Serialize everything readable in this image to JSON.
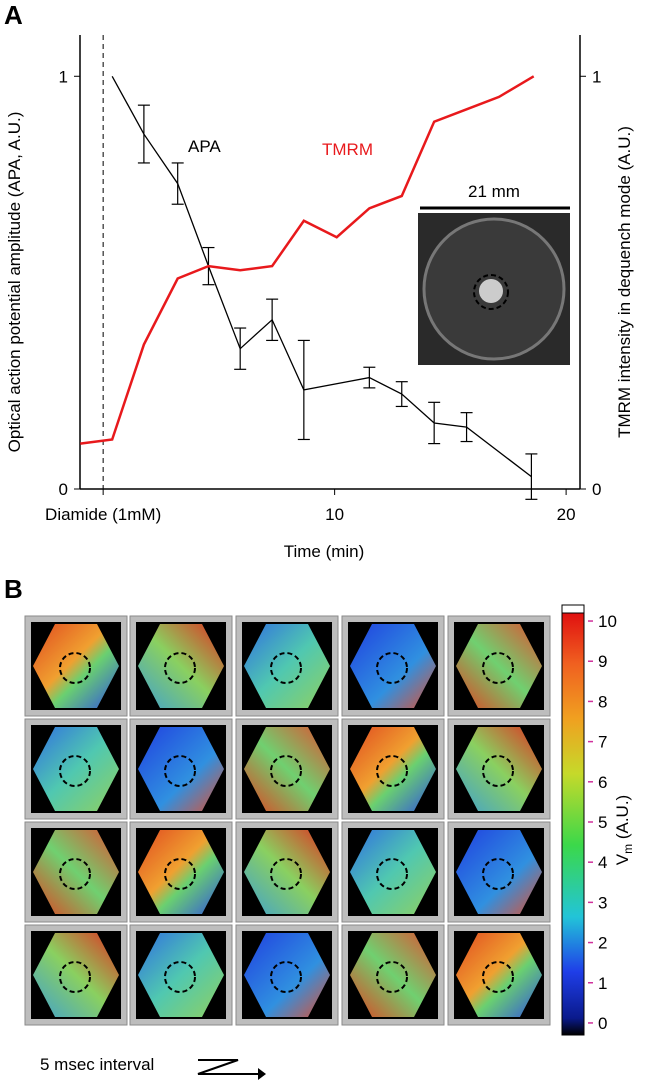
{
  "chart_data": [
    {
      "type": "line",
      "panel_label": "A",
      "xlabel": "Time (min)",
      "ylabel": "Optical action potential amplitude (APA, A.U.)",
      "y2label": "TMRM intensity in dequench mode (A.U.)",
      "xlim": [
        -1,
        20.6
      ],
      "xticks": [
        {
          "value": 0,
          "label": "Diamide (1mM)"
        },
        10,
        20
      ],
      "ylim": [
        0,
        1.1
      ],
      "yticks": [
        0,
        1
      ],
      "y2lim": [
        0,
        1.1
      ],
      "y2ticks": [
        0,
        1
      ],
      "annotations": [
        "APA",
        "TMRM",
        "21 mm"
      ],
      "series": [
        {
          "name": "APA",
          "color": "#000000",
          "x": [
            0.39,
            1.76,
            3.22,
            4.55,
            5.92,
            7.3,
            8.67,
            11.5,
            12.9,
            14.3,
            15.7,
            18.5
          ],
          "values": [
            1.0,
            0.86,
            0.74,
            0.54,
            0.34,
            0.41,
            0.24,
            0.27,
            0.23,
            0.16,
            0.15,
            0.03
          ],
          "errors": [
            null,
            0.07,
            0.05,
            0.045,
            0.05,
            0.05,
            0.12,
            0.025,
            0.03,
            0.05,
            0.035,
            0.055
          ]
        },
        {
          "name": "TMRM",
          "color": "#e8191c",
          "axis": "y2",
          "x": [
            -0.99,
            0.39,
            1.76,
            3.22,
            4.55,
            5.92,
            7.3,
            8.67,
            10.09,
            11.5,
            12.9,
            14.3,
            15.7,
            17.1,
            18.6
          ],
          "values": [
            0.11,
            0.12,
            0.35,
            0.51,
            0.54,
            0.53,
            0.54,
            0.65,
            0.61,
            0.68,
            0.71,
            0.89,
            0.92,
            0.95,
            1.0
          ]
        }
      ]
    },
    {
      "type": "heatmap",
      "panel_label": "B",
      "clim": [
        -0.3,
        10.2
      ],
      "colorbar_ticks": [
        0,
        1,
        2,
        3,
        4,
        5,
        6,
        7,
        8,
        9,
        10
      ],
      "colorbar_label": {
        "main": "V",
        "sub": "m",
        "rest": " (A.U.)"
      },
      "caption": "5 msec interval"
    }
  ]
}
